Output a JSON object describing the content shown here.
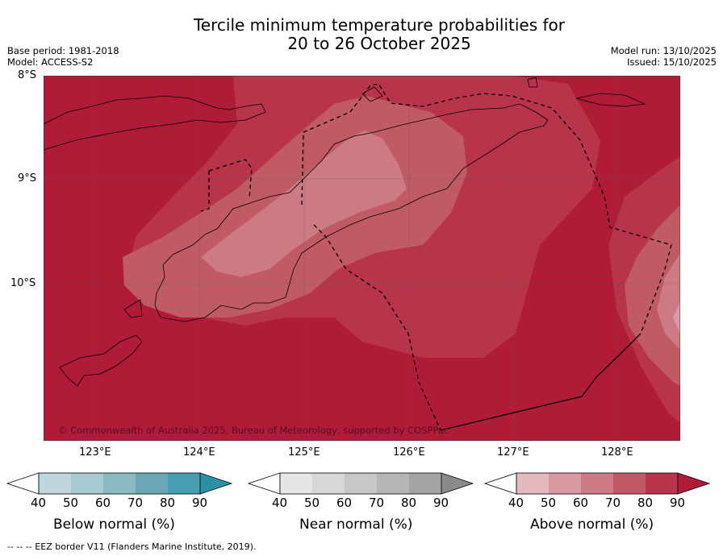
{
  "header": {
    "title_line1": "Tercile minimum temperature probabilities for",
    "title_line2": "20 to 26 October 2025",
    "base_period": "Base period: 1981-2018",
    "model": "Model: ACCESS-S2",
    "model_run": "Model run: 13/10/2025",
    "issued": "Issued: 15/10/2025"
  },
  "map": {
    "lat_labels": [
      "8°S",
      "9°S",
      "10°S"
    ],
    "lon_labels": [
      "123°E",
      "124°E",
      "125°E",
      "126°E",
      "127°E",
      "128°E"
    ],
    "copyright": "© Commonwealth of Australia 2025, Bureau of Meteorology, supported by COSPPac"
  },
  "legend": {
    "below": {
      "label": "Below normal (%)",
      "ticks": [
        "40",
        "50",
        "60",
        "70",
        "80",
        "90"
      ],
      "colors": [
        "#bfd5dc",
        "#a7c9d0",
        "#8bb8c1",
        "#6aa7b3",
        "#479eae",
        "#2e90a4"
      ]
    },
    "near": {
      "label": "Near normal (%)",
      "ticks": [
        "40",
        "50",
        "60",
        "70",
        "80",
        "90"
      ],
      "colors": [
        "#e6e6e6",
        "#d7d7d7",
        "#c7c7c7",
        "#b5b5b5",
        "#a3a3a3",
        "#8a8a8a"
      ]
    },
    "above": {
      "label": "Above normal (%)",
      "ticks": [
        "40",
        "50",
        "60",
        "70",
        "80",
        "90"
      ],
      "colors": [
        "#e3b8bf",
        "#d99aa3",
        "#cc7a84",
        "#c05a65",
        "#b7344a",
        "#b01c38"
      ]
    }
  },
  "footer": {
    "eez_note": "--  --  -- EEZ border V11 (Flanders Marine Institute, 2019)."
  }
}
